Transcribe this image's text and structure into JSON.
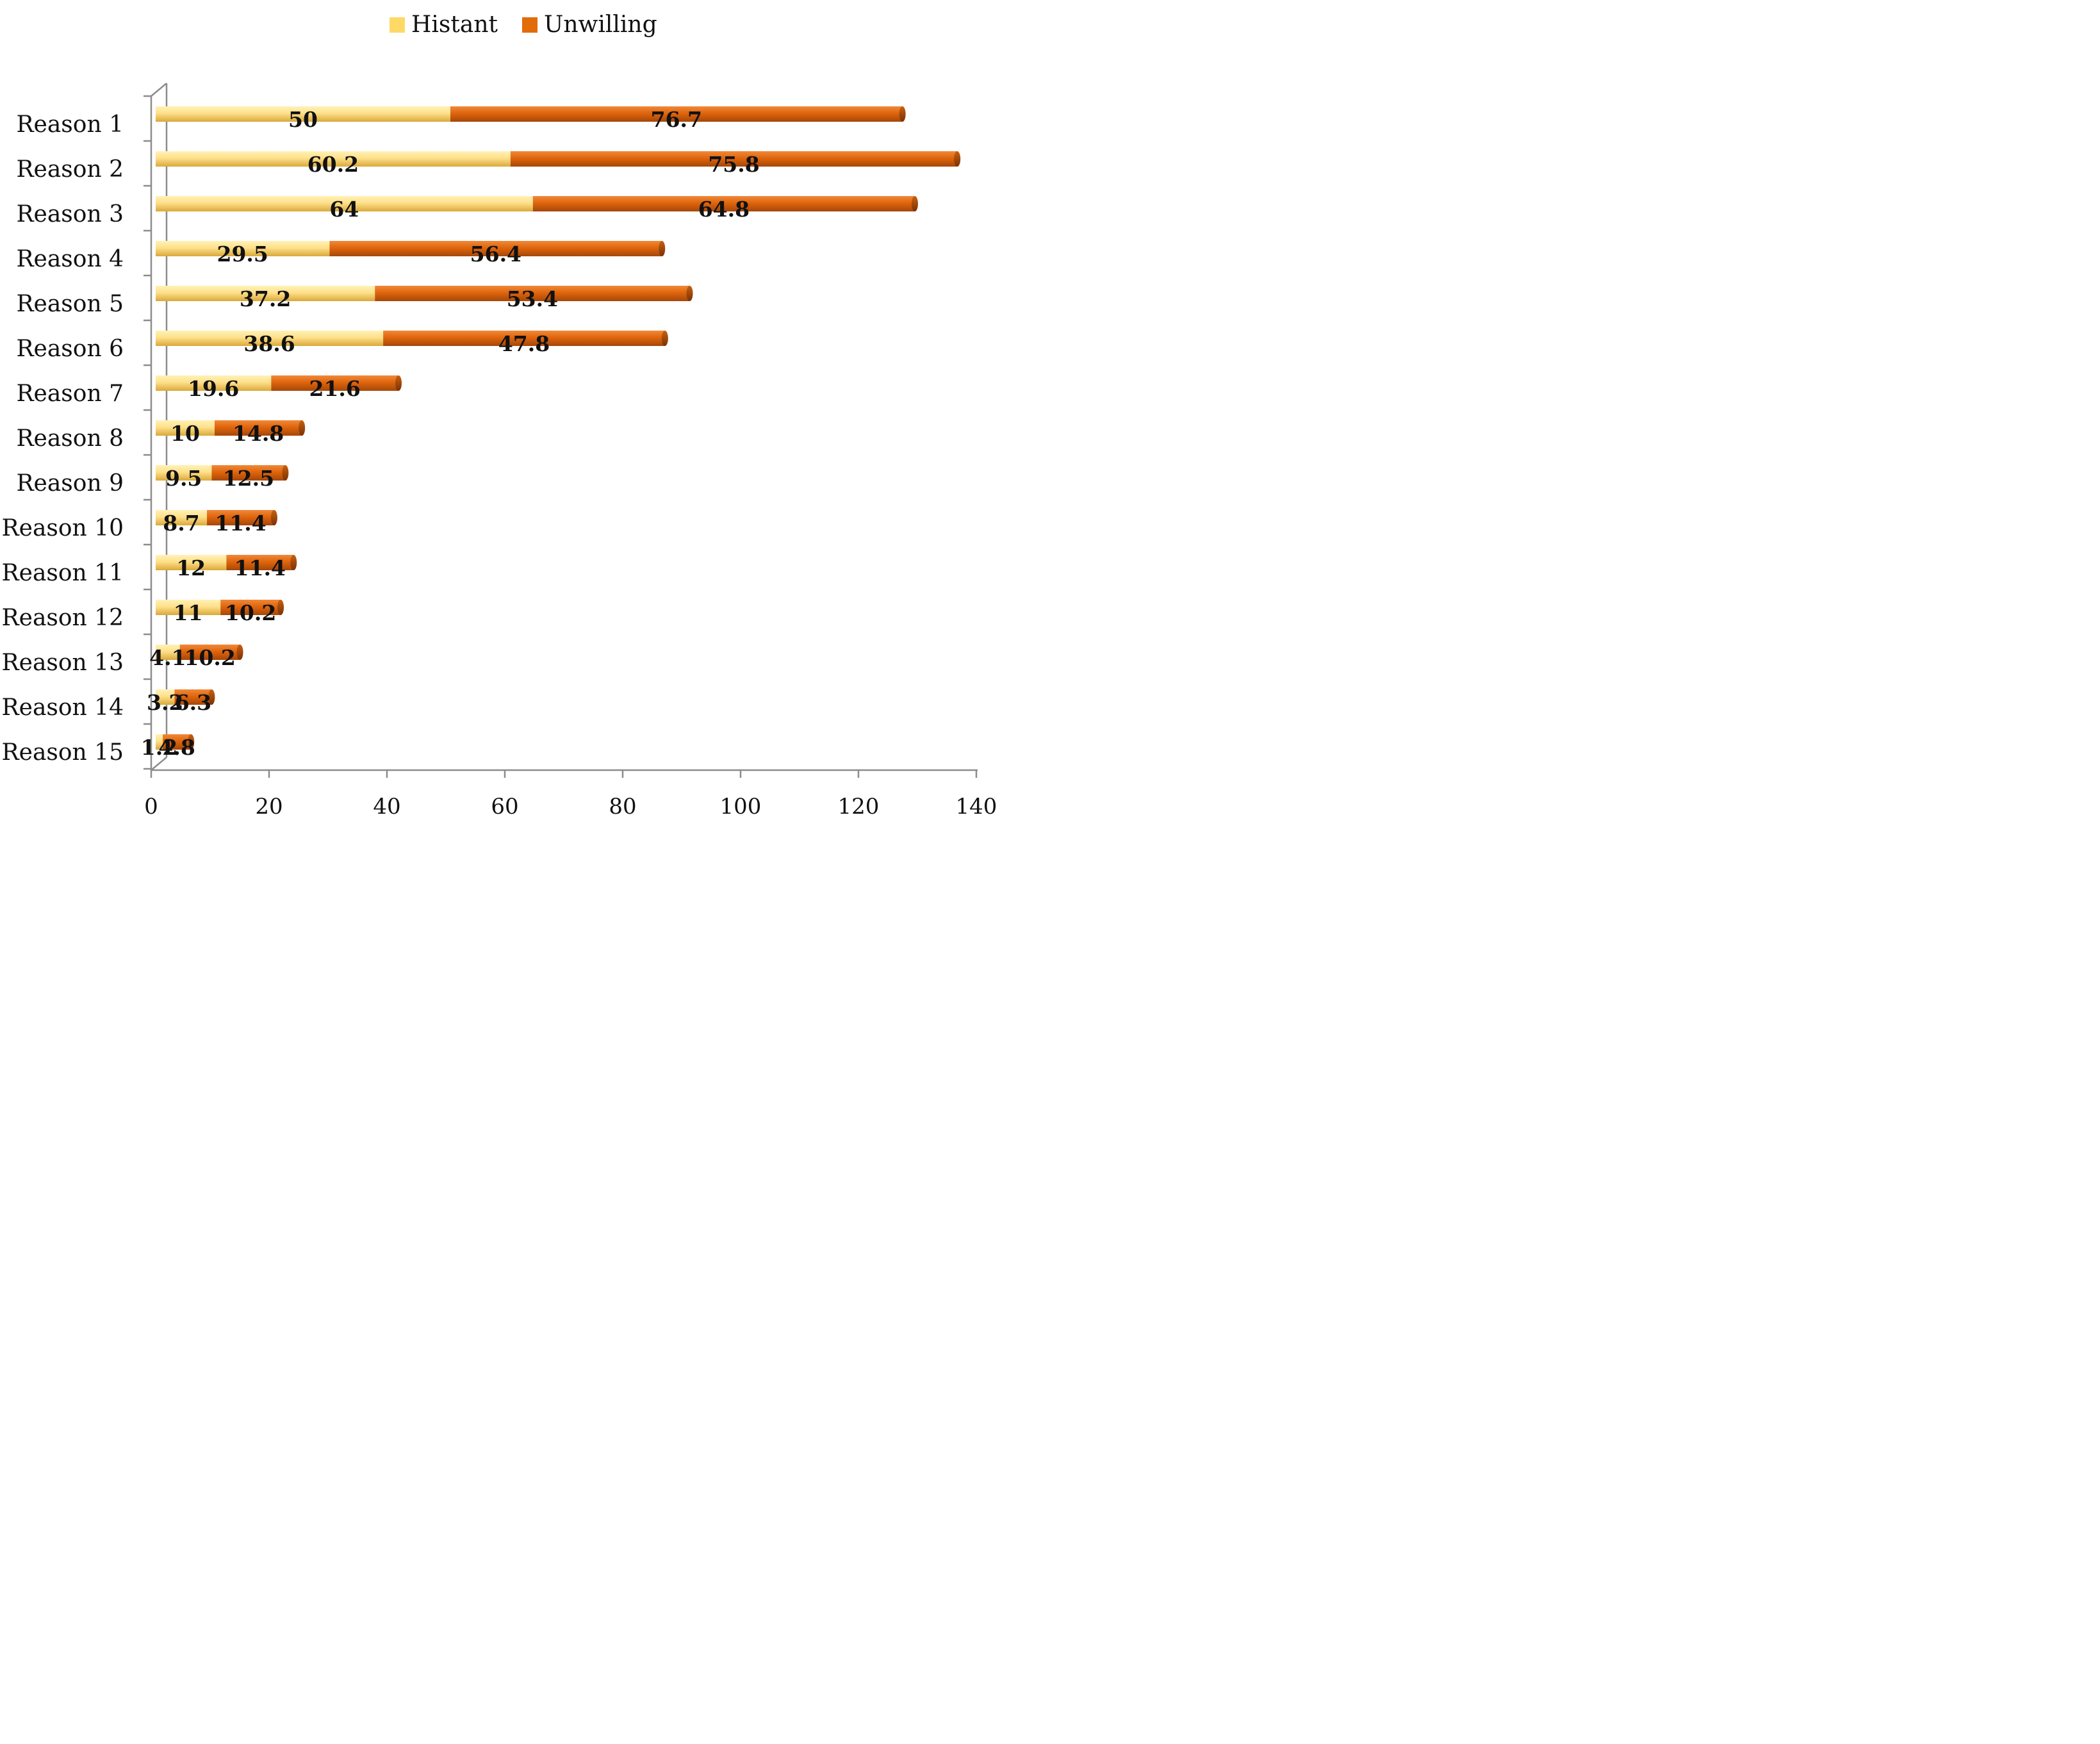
{
  "colors": {
    "histant": "#FFD966",
    "unwilling": "#E26B0A",
    "axis": "#8c8c8c"
  },
  "chart_data": {
    "type": "bar",
    "orientation": "horizontal",
    "stacked": true,
    "title": "",
    "xlabel": "",
    "ylabel": "",
    "xlim": [
      0,
      140
    ],
    "x_ticks": [
      "0",
      "20",
      "40",
      "60",
      "80",
      "100",
      "120",
      "140"
    ],
    "legend": {
      "position": "top",
      "entries": [
        "Histant",
        "Unwilling"
      ]
    },
    "categories": [
      "Reason 1",
      "Reason 2",
      "Reason 3",
      "Reason 4",
      "Reason 5",
      "Reason 6",
      "Reason 7",
      "Reason 8",
      "Reason 9",
      "Reason 10",
      "Reason 11",
      "Reason 12",
      "Reason 13",
      "Reason 14",
      "Reason 15"
    ],
    "series": [
      {
        "name": "Histant",
        "values": [
          50,
          60.2,
          64,
          29.5,
          37.2,
          38.6,
          19.6,
          10,
          9.5,
          8.7,
          12,
          11,
          4.1,
          3.2,
          1.2
        ],
        "labels": [
          "50",
          "60.2",
          "64",
          "29.5",
          "37.2",
          "38.6",
          "19.6",
          "10",
          "9.5",
          "8.7",
          "12",
          "11",
          "4.1",
          "3.2",
          "1.2"
        ]
      },
      {
        "name": "Unwilling",
        "values": [
          76.7,
          75.8,
          64.8,
          56.4,
          53.4,
          47.8,
          21.6,
          14.8,
          12.5,
          11.4,
          11.4,
          10.2,
          10.2,
          6.3,
          4.8
        ],
        "labels": [
          "76.7",
          "75.8",
          "64.8",
          "56.4",
          "53.4",
          "47.8",
          "21.6",
          "14.8",
          "12.5",
          "11.4",
          "11.4",
          "10.2",
          "10.2",
          "6.3",
          "4.8"
        ]
      }
    ]
  }
}
